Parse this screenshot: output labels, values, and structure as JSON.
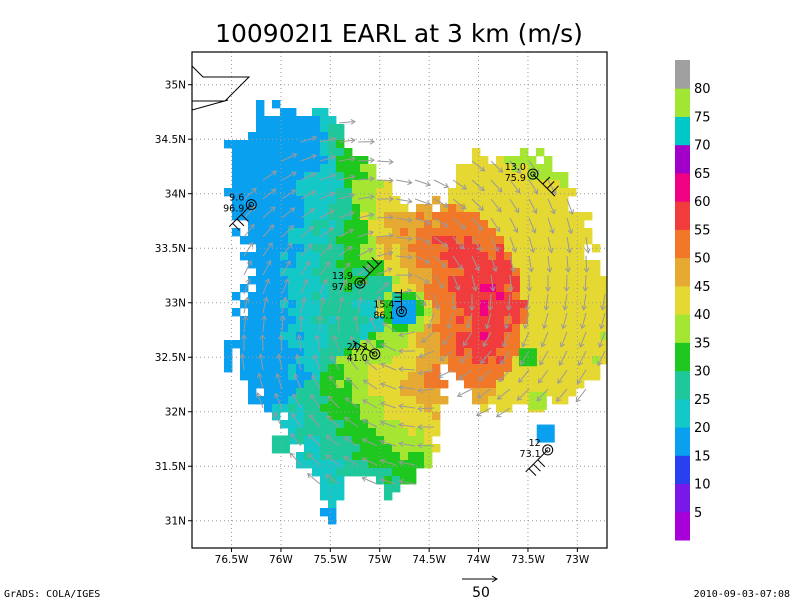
{
  "chart_data": {
    "type": "contour-map",
    "title": "100902I1 EARL at 3 km (m/s)",
    "x_axis": {
      "ticks": [
        -76.5,
        -76,
        -75.5,
        -75,
        -74.5,
        -74,
        -73.5,
        -73
      ],
      "labels": [
        "76.5W",
        "76W",
        "75.5W",
        "75W",
        "74.5W",
        "74W",
        "73.5W",
        "73W"
      ],
      "range": [
        -76.9,
        -72.7
      ]
    },
    "y_axis": {
      "ticks": [
        31,
        31.5,
        32,
        32.5,
        33,
        33.5,
        34,
        34.5,
        35
      ],
      "labels": [
        "31N",
        "31.5N",
        "32N",
        "32.5N",
        "33N",
        "33.5N",
        "34N",
        "34.5N",
        "35N"
      ],
      "range": [
        30.75,
        35.3
      ]
    },
    "grid": true,
    "storm_center": {
      "lon": -74.75,
      "lat": 32.93
    },
    "colorbar": {
      "levels": [
        5,
        10,
        15,
        20,
        25,
        30,
        35,
        40,
        45,
        50,
        55,
        60,
        65,
        70,
        75,
        80
      ],
      "colors": [
        "#a800d8",
        "#7a18e8",
        "#2840f0",
        "#0aa0f0",
        "#14c8c8",
        "#1ec89a",
        "#1ec81e",
        "#a4e632",
        "#e6d832",
        "#e6aa32",
        "#f07828",
        "#f03c3c",
        "#f00082",
        "#a000c8",
        "#00c8c8",
        "#a0e632",
        "#a0a0a0"
      ]
    },
    "stations": [
      {
        "lon": -76.3,
        "lat": 33.9,
        "label_top": "9.6",
        "label_bottom": "96.9"
      },
      {
        "lon": -73.45,
        "lat": 34.18,
        "label_top": "13.0",
        "label_bottom": "75.9"
      },
      {
        "lon": -75.2,
        "lat": 33.18,
        "label_top": "13.9",
        "label_bottom": "97.8"
      },
      {
        "lon": -74.78,
        "lat": 32.92,
        "label_top": "15.4",
        "label_bottom": "86.1"
      },
      {
        "lon": -75.05,
        "lat": 32.53,
        "label_top": "21.3",
        "label_bottom": "41.0"
      },
      {
        "lon": -73.3,
        "lat": 31.65,
        "label_top": "12",
        "label_bottom": "73.1"
      }
    ],
    "vector_scale_label": "50"
  },
  "footer": {
    "left": "GrADS: COLA/IGES",
    "right": "2010-09-03-07:08"
  }
}
